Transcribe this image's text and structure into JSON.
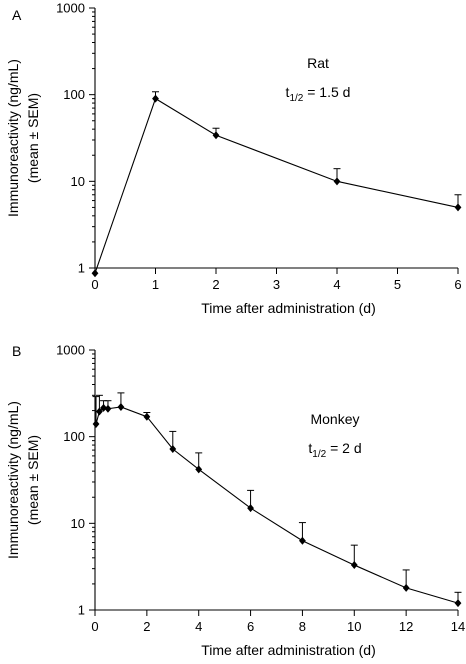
{
  "chart_data": [
    {
      "panel": "A",
      "type": "line",
      "xlabel": "Time after administration (d)",
      "ylabel": [
        "Immunoreactivity (ng/mL)",
        "(mean ± SEM)"
      ],
      "yscale": "log",
      "xlim": [
        0,
        6
      ],
      "ylim": [
        1,
        1000
      ],
      "xticks": [
        0,
        1,
        2,
        3,
        4,
        5,
        6
      ],
      "yticks": [
        1,
        10,
        100,
        1000
      ],
      "annotation": {
        "species": "Rat",
        "halflife_main": "t",
        "halflife_sub": "1/2",
        "halflife_rest": " = 1.5 d"
      },
      "series": [
        {
          "x": [
            0,
            1,
            2,
            4,
            6
          ],
          "y": [
            0.87,
            90,
            34,
            10,
            5
          ],
          "err_upper": [
            null,
            108,
            41,
            14,
            7
          ]
        }
      ]
    },
    {
      "panel": "B",
      "type": "line",
      "xlabel": "Time after administration (d)",
      "ylabel": [
        "Immunoreactivity (ng/mL)",
        "(mean ± SEM)"
      ],
      "yscale": "log",
      "xlim": [
        0,
        14
      ],
      "ylim": [
        1,
        1000
      ],
      "xticks": [
        0,
        2,
        4,
        6,
        8,
        10,
        12,
        14
      ],
      "yticks": [
        1,
        10,
        100,
        1000
      ],
      "annotation": {
        "species": "Monkey",
        "halflife_main": "t",
        "halflife_sub": "1/2",
        "halflife_rest": " = 2 d"
      },
      "series": [
        {
          "x": [
            0.04,
            0.17,
            0.33,
            0.5,
            1,
            2,
            3,
            4,
            6,
            8,
            10,
            12,
            14
          ],
          "y": [
            140,
            195,
            215,
            210,
            220,
            170,
            72,
            42,
            15,
            6.3,
            3.3,
            1.8,
            1.2
          ],
          "err_upper": [
            290,
            300,
            260,
            260,
            320,
            190,
            115,
            65,
            24,
            10.2,
            5.6,
            2.9,
            1.6
          ]
        }
      ]
    }
  ]
}
